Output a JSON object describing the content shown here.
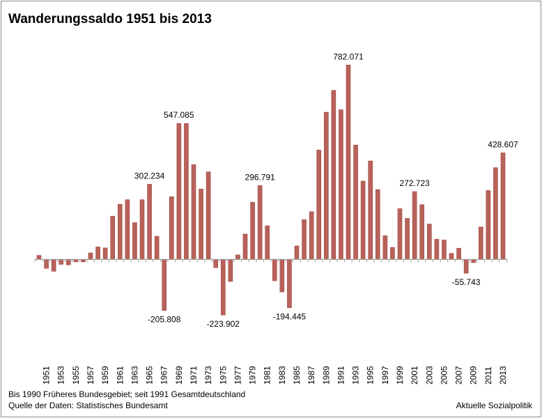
{
  "chart_data": {
    "type": "bar",
    "title": "Wanderungssaldo 1951 bis 2013",
    "xlabel": "",
    "ylabel": "",
    "ylim": [
      -250,
      800
    ],
    "grid": false,
    "categories": [
      1950,
      1951,
      1952,
      1953,
      1954,
      1955,
      1956,
      1957,
      1958,
      1959,
      1960,
      1961,
      1962,
      1963,
      1964,
      1965,
      1966,
      1967,
      1968,
      1969,
      1970,
      1971,
      1972,
      1973,
      1974,
      1975,
      1976,
      1977,
      1978,
      1979,
      1980,
      1981,
      1982,
      1983,
      1984,
      1985,
      1986,
      1987,
      1988,
      1989,
      1990,
      1991,
      1992,
      1993,
      1994,
      1995,
      1996,
      1997,
      1998,
      1999,
      2000,
      2001,
      2002,
      2003,
      2004,
      2005,
      2006,
      2007,
      2008,
      2009,
      2010,
      2011,
      2012,
      2013
    ],
    "values": [
      16,
      -36,
      -48,
      -20,
      -22,
      -10,
      -10,
      26,
      50,
      46,
      174,
      222,
      240,
      148,
      240,
      302.234,
      93,
      -205.808,
      252,
      547.085,
      547,
      381,
      283,
      352,
      -33,
      -223.902,
      -89,
      18,
      102,
      230,
      296.791,
      135,
      -86,
      -131,
      -194.445,
      54,
      160,
      192,
      440,
      592,
      680,
      602,
      782.071,
      460,
      315,
      396,
      281,
      95,
      48,
      204,
      165,
      272.723,
      220,
      142,
      81,
      78,
      24,
      45,
      -55.743,
      -13,
      130,
      277,
      369,
      428.607
    ],
    "tick_labels": [
      "1951",
      "1953",
      "1955",
      "1957",
      "1959",
      "1961",
      "1963",
      "1965",
      "1967",
      "1969",
      "1971",
      "1973",
      "1975",
      "1977",
      "1979",
      "1981",
      "1983",
      "1985",
      "1987",
      "1989",
      "1991",
      "1993",
      "1995",
      "1997",
      "1999",
      "2001",
      "2003",
      "2005",
      "2007",
      "2009",
      "2011",
      "2013"
    ],
    "annotations": [
      {
        "year": 1965,
        "text": "302.234"
      },
      {
        "year": 1967,
        "text": "-205.808"
      },
      {
        "year": 1969,
        "text": "547.085"
      },
      {
        "year": 1975,
        "text": "-223.902"
      },
      {
        "year": 1980,
        "text": "296.791"
      },
      {
        "year": 1984,
        "text": "-194.445"
      },
      {
        "year": 1992,
        "text": "782.071"
      },
      {
        "year": 2001,
        "text": "272.723"
      },
      {
        "year": 2008,
        "text": "-55.743"
      },
      {
        "year": 2013,
        "text": "428.607"
      }
    ],
    "bar_color": "#b8625c",
    "bar_edge_color": "#a5423b"
  },
  "footer": {
    "note": "Bis 1990 Früheres Bundesgebiet; seit 1991 Gesamtdeutschland",
    "source": "Quelle der Daten: Statistisches Bundesamt",
    "brand": "Aktuelle Sozialpolitik"
  }
}
